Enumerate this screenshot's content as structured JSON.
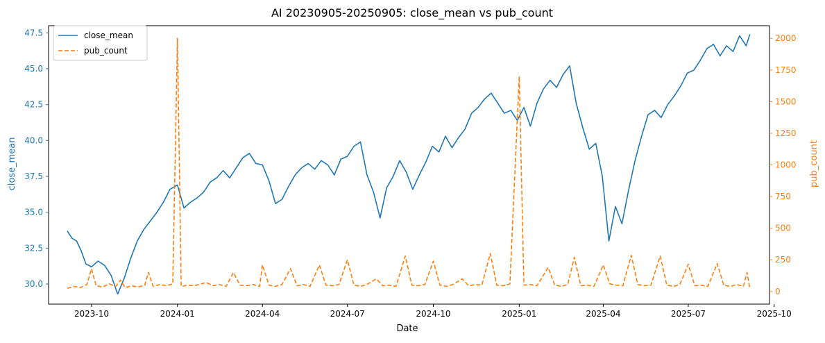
{
  "chart_data": {
    "type": "line",
    "title": "AI 20230905-20250905: close_mean vs pub_count",
    "xlabel": "Date",
    "ylabel_left": "close_mean",
    "ylabel_right": "pub_count",
    "x_ticks": [
      "2023-10",
      "2024-01",
      "2024-04",
      "2024-07",
      "2024-10",
      "2025-01",
      "2025-04",
      "2025-07",
      "2025-10"
    ],
    "x_tick_dates": [
      "2023-10-01",
      "2024-01-01",
      "2024-04-01",
      "2024-07-01",
      "2024-10-01",
      "2025-01-01",
      "2025-04-01",
      "2025-07-01",
      "2025-10-01"
    ],
    "y_left_ticks": [
      "30.0",
      "32.5",
      "35.0",
      "37.5",
      "40.0",
      "42.5",
      "45.0",
      "47.5"
    ],
    "y_left_tick_values": [
      30.0,
      32.5,
      35.0,
      37.5,
      40.0,
      42.5,
      45.0,
      47.5
    ],
    "y_right_ticks": [
      "0",
      "250",
      "500",
      "750",
      "1000",
      "1250",
      "1500",
      "1750",
      "2000"
    ],
    "y_right_tick_values": [
      0,
      250,
      500,
      750,
      1000,
      1250,
      1500,
      1750,
      2000
    ],
    "x_range": [
      "2023-08-16",
      "2025-09-26"
    ],
    "ylim_left": [
      28.6,
      48.0
    ],
    "ylim_right": [
      -100,
      2100
    ],
    "grid": false,
    "legend_position": "upper-left",
    "series": [
      {
        "name": "close_mean",
        "axis": "left",
        "color": "#1f77b4",
        "line_style": "solid",
        "points": [
          [
            "2023-09-05",
            33.7
          ],
          [
            "2023-09-10",
            33.2
          ],
          [
            "2023-09-15",
            33.0
          ],
          [
            "2023-09-20",
            32.3
          ],
          [
            "2023-09-25",
            31.4
          ],
          [
            "2023-10-01",
            31.2
          ],
          [
            "2023-10-08",
            31.6
          ],
          [
            "2023-10-15",
            31.3
          ],
          [
            "2023-10-22",
            30.6
          ],
          [
            "2023-10-29",
            29.3
          ],
          [
            "2023-11-05",
            30.4
          ],
          [
            "2023-11-12",
            31.8
          ],
          [
            "2023-11-19",
            33.0
          ],
          [
            "2023-11-26",
            33.8
          ],
          [
            "2023-12-03",
            34.4
          ],
          [
            "2023-12-10",
            35.0
          ],
          [
            "2023-12-17",
            35.7
          ],
          [
            "2023-12-24",
            36.6
          ],
          [
            "2024-01-01",
            36.9
          ],
          [
            "2024-01-08",
            35.3
          ],
          [
            "2024-01-15",
            35.7
          ],
          [
            "2024-01-22",
            36.0
          ],
          [
            "2024-01-29",
            36.4
          ],
          [
            "2024-02-05",
            37.1
          ],
          [
            "2024-02-12",
            37.4
          ],
          [
            "2024-02-19",
            37.9
          ],
          [
            "2024-02-26",
            37.4
          ],
          [
            "2024-03-04",
            38.1
          ],
          [
            "2024-03-11",
            38.8
          ],
          [
            "2024-03-18",
            39.1
          ],
          [
            "2024-03-25",
            38.4
          ],
          [
            "2024-04-01",
            38.3
          ],
          [
            "2024-04-08",
            37.2
          ],
          [
            "2024-04-15",
            35.6
          ],
          [
            "2024-04-22",
            35.9
          ],
          [
            "2024-04-29",
            36.8
          ],
          [
            "2024-05-06",
            37.6
          ],
          [
            "2024-05-13",
            38.1
          ],
          [
            "2024-05-20",
            38.4
          ],
          [
            "2024-05-27",
            38.0
          ],
          [
            "2024-06-03",
            38.6
          ],
          [
            "2024-06-10",
            38.3
          ],
          [
            "2024-06-17",
            37.6
          ],
          [
            "2024-06-24",
            38.7
          ],
          [
            "2024-07-01",
            38.9
          ],
          [
            "2024-07-08",
            39.6
          ],
          [
            "2024-07-15",
            39.9
          ],
          [
            "2024-07-22",
            37.6
          ],
          [
            "2024-07-29",
            36.4
          ],
          [
            "2024-08-05",
            34.6
          ],
          [
            "2024-08-12",
            36.7
          ],
          [
            "2024-08-19",
            37.5
          ],
          [
            "2024-08-26",
            38.6
          ],
          [
            "2024-09-02",
            37.8
          ],
          [
            "2024-09-09",
            36.6
          ],
          [
            "2024-09-16",
            37.6
          ],
          [
            "2024-09-23",
            38.5
          ],
          [
            "2024-09-30",
            39.6
          ],
          [
            "2024-10-07",
            39.2
          ],
          [
            "2024-10-14",
            40.3
          ],
          [
            "2024-10-21",
            39.5
          ],
          [
            "2024-10-28",
            40.2
          ],
          [
            "2024-11-04",
            40.8
          ],
          [
            "2024-11-11",
            41.9
          ],
          [
            "2024-11-18",
            42.3
          ],
          [
            "2024-11-25",
            42.9
          ],
          [
            "2024-12-02",
            43.3
          ],
          [
            "2024-12-09",
            42.6
          ],
          [
            "2024-12-16",
            41.9
          ],
          [
            "2024-12-23",
            42.1
          ],
          [
            "2024-12-30",
            41.4
          ],
          [
            "2025-01-06",
            42.3
          ],
          [
            "2025-01-13",
            41.0
          ],
          [
            "2025-01-20",
            42.6
          ],
          [
            "2025-01-27",
            43.6
          ],
          [
            "2025-02-03",
            44.2
          ],
          [
            "2025-02-10",
            43.7
          ],
          [
            "2025-02-17",
            44.6
          ],
          [
            "2025-02-24",
            45.2
          ],
          [
            "2025-03-03",
            42.6
          ],
          [
            "2025-03-10",
            40.9
          ],
          [
            "2025-03-17",
            39.4
          ],
          [
            "2025-03-24",
            39.8
          ],
          [
            "2025-03-31",
            37.5
          ],
          [
            "2025-04-07",
            33.0
          ],
          [
            "2025-04-14",
            35.4
          ],
          [
            "2025-04-21",
            34.2
          ],
          [
            "2025-04-28",
            36.5
          ],
          [
            "2025-05-05",
            38.6
          ],
          [
            "2025-05-12",
            40.3
          ],
          [
            "2025-05-19",
            41.8
          ],
          [
            "2025-05-26",
            42.1
          ],
          [
            "2025-06-02",
            41.6
          ],
          [
            "2025-06-09",
            42.5
          ],
          [
            "2025-06-16",
            43.1
          ],
          [
            "2025-06-23",
            43.8
          ],
          [
            "2025-06-30",
            44.7
          ],
          [
            "2025-07-07",
            44.9
          ],
          [
            "2025-07-14",
            45.6
          ],
          [
            "2025-07-21",
            46.4
          ],
          [
            "2025-07-28",
            46.7
          ],
          [
            "2025-08-04",
            45.9
          ],
          [
            "2025-08-11",
            46.6
          ],
          [
            "2025-08-18",
            46.2
          ],
          [
            "2025-08-25",
            47.3
          ],
          [
            "2025-09-01",
            46.6
          ],
          [
            "2025-09-05",
            47.4
          ]
        ]
      },
      {
        "name": "pub_count",
        "axis": "right",
        "color": "#ff7f0e",
        "line_style": "dashed",
        "points": [
          [
            "2023-09-05",
            25
          ],
          [
            "2023-09-12",
            40
          ],
          [
            "2023-09-19",
            30
          ],
          [
            "2023-09-26",
            55
          ],
          [
            "2023-10-01",
            180
          ],
          [
            "2023-10-06",
            45
          ],
          [
            "2023-10-13",
            35
          ],
          [
            "2023-10-20",
            60
          ],
          [
            "2023-10-27",
            40
          ],
          [
            "2023-11-01",
            90
          ],
          [
            "2023-11-06",
            30
          ],
          [
            "2023-11-13",
            45
          ],
          [
            "2023-11-20",
            35
          ],
          [
            "2023-11-27",
            50
          ],
          [
            "2023-12-01",
            150
          ],
          [
            "2023-12-06",
            40
          ],
          [
            "2023-12-13",
            55
          ],
          [
            "2023-12-20",
            45
          ],
          [
            "2023-12-27",
            60
          ],
          [
            "2024-01-01",
            2000
          ],
          [
            "2024-01-05",
            40
          ],
          [
            "2024-01-12",
            50
          ],
          [
            "2024-01-19",
            45
          ],
          [
            "2024-01-26",
            60
          ],
          [
            "2024-02-01",
            70
          ],
          [
            "2024-02-08",
            45
          ],
          [
            "2024-02-15",
            55
          ],
          [
            "2024-02-22",
            40
          ],
          [
            "2024-03-01",
            150
          ],
          [
            "2024-03-08",
            50
          ],
          [
            "2024-03-15",
            45
          ],
          [
            "2024-03-22",
            55
          ],
          [
            "2024-03-29",
            40
          ],
          [
            "2024-04-01",
            210
          ],
          [
            "2024-04-08",
            50
          ],
          [
            "2024-04-15",
            40
          ],
          [
            "2024-04-22",
            55
          ],
          [
            "2024-05-01",
            180
          ],
          [
            "2024-05-08",
            45
          ],
          [
            "2024-05-15",
            55
          ],
          [
            "2024-05-22",
            40
          ],
          [
            "2024-06-01",
            210
          ],
          [
            "2024-06-08",
            50
          ],
          [
            "2024-06-15",
            45
          ],
          [
            "2024-06-22",
            55
          ],
          [
            "2024-07-01",
            250
          ],
          [
            "2024-07-08",
            50
          ],
          [
            "2024-07-15",
            40
          ],
          [
            "2024-07-22",
            55
          ],
          [
            "2024-08-01",
            100
          ],
          [
            "2024-08-08",
            45
          ],
          [
            "2024-08-15",
            50
          ],
          [
            "2024-08-22",
            40
          ],
          [
            "2024-09-01",
            280
          ],
          [
            "2024-09-08",
            50
          ],
          [
            "2024-09-15",
            45
          ],
          [
            "2024-09-22",
            55
          ],
          [
            "2024-10-01",
            240
          ],
          [
            "2024-10-08",
            50
          ],
          [
            "2024-10-15",
            40
          ],
          [
            "2024-10-22",
            55
          ],
          [
            "2024-11-01",
            100
          ],
          [
            "2024-11-08",
            45
          ],
          [
            "2024-11-15",
            55
          ],
          [
            "2024-11-22",
            50
          ],
          [
            "2024-12-01",
            300
          ],
          [
            "2024-12-08",
            50
          ],
          [
            "2024-12-15",
            45
          ],
          [
            "2024-12-22",
            60
          ],
          [
            "2025-01-01",
            1700
          ],
          [
            "2025-01-06",
            50
          ],
          [
            "2025-01-13",
            55
          ],
          [
            "2025-01-20",
            45
          ],
          [
            "2025-02-01",
            190
          ],
          [
            "2025-02-08",
            50
          ],
          [
            "2025-02-15",
            40
          ],
          [
            "2025-02-22",
            55
          ],
          [
            "2025-03-01",
            270
          ],
          [
            "2025-03-08",
            45
          ],
          [
            "2025-03-15",
            50
          ],
          [
            "2025-03-22",
            40
          ],
          [
            "2025-04-01",
            210
          ],
          [
            "2025-04-08",
            60
          ],
          [
            "2025-04-15",
            50
          ],
          [
            "2025-04-22",
            45
          ],
          [
            "2025-05-01",
            285
          ],
          [
            "2025-05-08",
            55
          ],
          [
            "2025-05-15",
            45
          ],
          [
            "2025-05-22",
            50
          ],
          [
            "2025-06-01",
            280
          ],
          [
            "2025-06-08",
            50
          ],
          [
            "2025-06-15",
            40
          ],
          [
            "2025-06-22",
            55
          ],
          [
            "2025-07-01",
            215
          ],
          [
            "2025-07-08",
            45
          ],
          [
            "2025-07-15",
            50
          ],
          [
            "2025-07-22",
            40
          ],
          [
            "2025-08-01",
            220
          ],
          [
            "2025-08-08",
            50
          ],
          [
            "2025-08-15",
            40
          ],
          [
            "2025-08-22",
            55
          ],
          [
            "2025-08-29",
            40
          ],
          [
            "2025-09-02",
            150
          ],
          [
            "2025-09-05",
            20
          ]
        ]
      }
    ]
  }
}
